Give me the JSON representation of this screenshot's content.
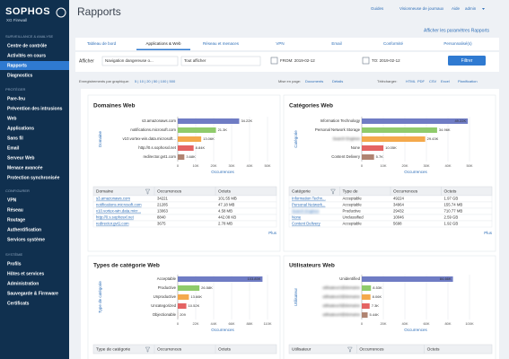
{
  "sidebar": {
    "logo": "SOPHOS",
    "product": "XG Firewall",
    "sections": [
      {
        "title": "SURVEILLANCE & ANALYSE",
        "items": [
          "Centre de contrôle",
          "Activités en cours",
          "Rapports",
          "Diagnostics"
        ]
      },
      {
        "title": "PROTÉGER",
        "items": [
          "Pare-feu",
          "Prévention des intrusions",
          "Web",
          "Applications",
          "Sans fil",
          "Email",
          "Serveur Web",
          "Menace avancée",
          "Protection synchronisée"
        ]
      },
      {
        "title": "CONFIGURER",
        "items": [
          "VPN",
          "Réseau",
          "Routage",
          "Authentification",
          "Services système"
        ]
      },
      {
        "title": "SYSTÈME",
        "items": [
          "Profils",
          "Hôtes et services",
          "Administration",
          "Sauvegarde & Firmware",
          "Certificats"
        ]
      }
    ]
  },
  "header": {
    "title": "Rapports",
    "links": [
      "Guides",
      "Visionneuse de journaux",
      "Aide",
      "admin"
    ],
    "settings_link": "Afficher les paramètres Rapports"
  },
  "tabs": [
    "Tableau de bord",
    "Applications & Web",
    "Réseau et menaces",
    "VPN",
    "Email",
    "Conformité",
    "Personnalisé(s)"
  ],
  "filters": {
    "label": "Afficher",
    "select1": "Navigation dangereuse o...",
    "select2": "Tout afficher",
    "from": "FROM: 2019-02-12",
    "to": "TO: 2019-02-12",
    "button": "Filtrer"
  },
  "toolbar": {
    "records_label": "Enregistrements par graphique:",
    "records_options": "5 | 10 | 20 | 50 | 100 | 500",
    "view_label": "Mise en page:",
    "view_options": [
      "Documents",
      "Détails"
    ],
    "download_label": "Télécharger:",
    "download_options": [
      "HTML",
      "PDF",
      "CSV",
      "Excel"
    ],
    "schedule": "Planification"
  },
  "chart_data": [
    {
      "type": "bar",
      "orientation": "horizontal",
      "title": "Domaines Web",
      "y_label": "Domaine",
      "x_label": "Occurrences",
      "categories": [
        "s3.amazonaws.com",
        "notifications.microsoft.com",
        "v10.vortex-win.data.microsoft...",
        "http://0.s.sophosxl.net",
        "redirector.gvt1.com"
      ],
      "values": [
        34221,
        21285,
        13063,
        8840,
        3675
      ],
      "value_labels": [
        "34.22K",
        "21.3K",
        "13.06K",
        "8.84K",
        "3.68K"
      ],
      "colors": [
        "#6f7cc4",
        "#8fcb6b",
        "#f4a94c",
        "#e46363",
        "#b08472"
      ],
      "xlim": [
        0,
        50000
      ],
      "xticks": [
        0,
        {
          "value": 10000,
          "label": "10K"
        },
        {
          "value": 20000,
          "label": "20K"
        },
        {
          "value": 30000,
          "label": "30K"
        },
        {
          "value": 40000,
          "label": "40K"
        },
        {
          "value": 50000,
          "label": "50K"
        }
      ],
      "grid": true
    },
    {
      "type": "bar",
      "orientation": "horizontal",
      "title": "Catégories Web",
      "y_label": "Catégorie",
      "x_label": "Occurrences",
      "categories": [
        "Information Technology",
        "Personal Network Storage",
        "Search Engines",
        "None",
        "Content Delivery"
      ],
      "values": [
        49224,
        34964,
        29432,
        10046,
        5698
      ],
      "value_labels": [
        "49.22K",
        "34.96K",
        "29.43K",
        "10.05K",
        "5.7K"
      ],
      "colors": [
        "#6f7cc4",
        "#8fcb6b",
        "#f4a94c",
        "#e46363",
        "#b08472"
      ],
      "xlim": [
        0,
        50000
      ],
      "xticks": [
        0,
        {
          "value": 10000,
          "label": "10K"
        },
        {
          "value": 20000,
          "label": "20K"
        },
        {
          "value": 30000,
          "label": "30K"
        },
        {
          "value": 40000,
          "label": "40K"
        },
        {
          "value": 50000,
          "label": "50K"
        }
      ],
      "grid": true
    },
    {
      "type": "bar",
      "orientation": "horizontal",
      "title": "Types de catégorie Web",
      "y_label": "Type de catégorie",
      "x_label": "Occurrences",
      "categories": [
        "Acceptable",
        "Productive",
        "Unproductive",
        "Uncategorized",
        "Objectionable"
      ],
      "values": [
        103850,
        26580,
        13660,
        10520,
        209
      ],
      "value_labels": [
        "103.85K",
        "26.58K",
        "13.66K",
        "10.52K",
        "209"
      ],
      "colors": [
        "#6f7cc4",
        "#8fcb6b",
        "#f4a94c",
        "#e46363",
        "#b08472"
      ],
      "xlim": [
        0,
        110000
      ],
      "xticks": [
        0,
        {
          "value": 22000,
          "label": "22K"
        },
        {
          "value": 44000,
          "label": "44K"
        },
        {
          "value": 66000,
          "label": "66K"
        },
        {
          "value": 88000,
          "label": "88K"
        },
        {
          "value": 110000,
          "label": "110K"
        }
      ],
      "grid": true
    },
    {
      "type": "bar",
      "orientation": "horizontal",
      "title": "Utilisateurs Web",
      "y_label": "Utilisateur",
      "x_label": "Occurrences",
      "categories": [
        "Unidentified",
        "utilisateur1@domaine",
        "utilisateur2@domaine",
        "utilisateur3@domaine",
        "utilisateur4@domaine"
      ],
      "values": [
        84660,
        8530,
        8060,
        7300,
        5440
      ],
      "value_labels": [
        "84.66K",
        "8.53K",
        "8.06K",
        "7.3K",
        "5.44K"
      ],
      "colors": [
        "#6f7cc4",
        "#8fcb6b",
        "#f4a94c",
        "#e46363",
        "#b08472"
      ],
      "xlim": [
        0,
        100000
      ],
      "xticks": [
        0,
        {
          "value": 20000,
          "label": "20K"
        },
        {
          "value": 40000,
          "label": "40K"
        },
        {
          "value": 60000,
          "label": "60K"
        },
        {
          "value": 80000,
          "label": "80K"
        },
        {
          "value": 100000,
          "label": "100K"
        }
      ],
      "grid": true
    }
  ],
  "tables": [
    {
      "columns": [
        "Domaine",
        "Occurrences",
        "Octets"
      ],
      "rows": [
        [
          "s3.amazonaws.com",
          34221,
          "101.55 MB"
        ],
        [
          "notifications.microsoft.com",
          21285,
          "47.18 MB"
        ],
        [
          "v10.vortex-win.data.micr...",
          13063,
          "4.58 MB"
        ],
        [
          "http://0.s.sophosxl.net",
          8840,
          "442.08 KB"
        ],
        [
          "redirector.gvt1.com",
          3675,
          "2.78 MB"
        ]
      ],
      "more": "Plus"
    },
    {
      "columns": [
        "Catégorie",
        "Type de",
        "Occurrences",
        "Octets"
      ],
      "rows": [
        [
          "Information Techn...",
          "Acceptable",
          49224,
          "1.97 GB"
        ],
        [
          "Personal Network...",
          "Acceptable",
          34964,
          "155.74 MB"
        ],
        [
          "Search Engines",
          "Productive",
          29432,
          "710.77 MB"
        ],
        [
          "None",
          "Unclassified",
          10046,
          "2.59 GB"
        ],
        [
          "Content Delivery",
          "Acceptable",
          5698,
          "1.92 GB"
        ]
      ],
      "more": "Plus"
    },
    {
      "columns": [
        "Type de catégorie",
        "Occurrences",
        "Octets"
      ],
      "rows": []
    },
    {
      "columns": [
        "Utilisateur",
        "Occurrences",
        "Octets"
      ],
      "rows": []
    }
  ]
}
